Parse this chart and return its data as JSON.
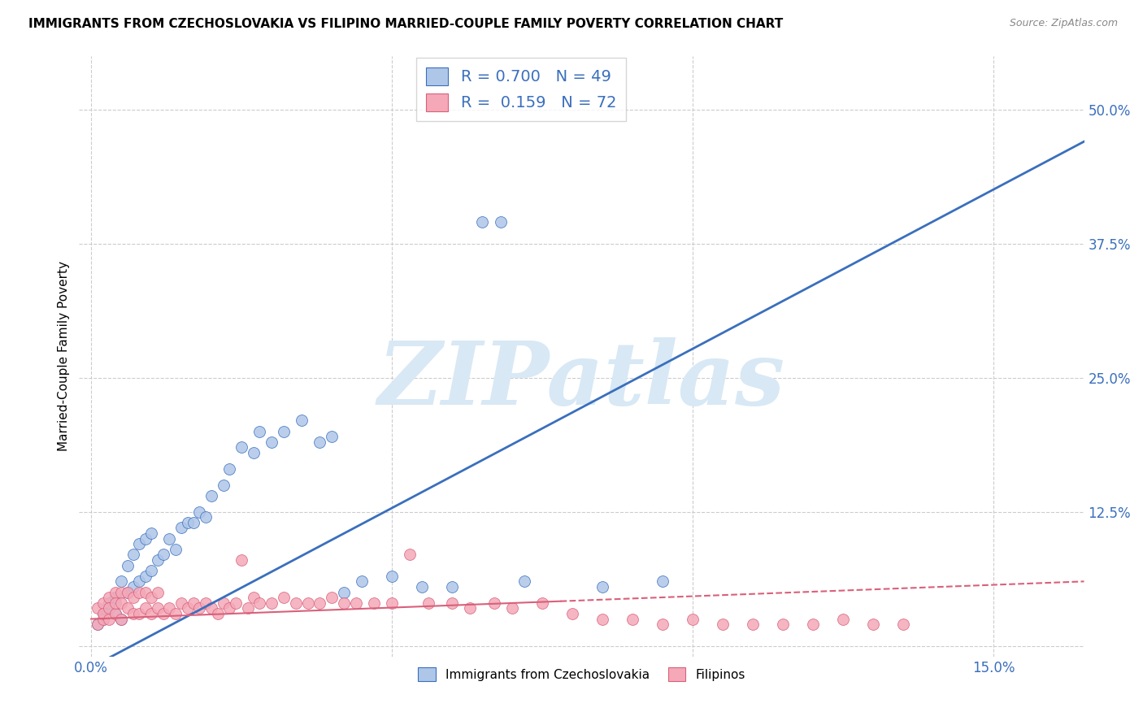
{
  "title": "IMMIGRANTS FROM CZECHOSLOVAKIA VS FILIPINO MARRIED-COUPLE FAMILY POVERTY CORRELATION CHART",
  "source": "Source: ZipAtlas.com",
  "ylabel": "Married-Couple Family Poverty",
  "x_ticks": [
    0.0,
    0.05,
    0.1,
    0.15
  ],
  "x_tick_labels": [
    "0.0%",
    "",
    "",
    "15.0%"
  ],
  "y_ticks": [
    0.0,
    0.125,
    0.25,
    0.375,
    0.5
  ],
  "y_tick_labels": [
    "",
    "12.5%",
    "25.0%",
    "37.5%",
    "50.0%"
  ],
  "xlim": [
    -0.002,
    0.165
  ],
  "ylim": [
    -0.01,
    0.55
  ],
  "legend_label1": "Immigrants from Czechoslovakia",
  "legend_label2": "Filipinos",
  "R1": 0.7,
  "N1": 49,
  "R2": 0.159,
  "N2": 72,
  "color_blue": "#aec6e8",
  "color_pink": "#f4a8b8",
  "line_color_blue": "#3a6fbd",
  "line_color_pink": "#d9607a",
  "watermark": "ZIPatlas",
  "watermark_color": "#d8e8f5",
  "background_color": "#ffffff",
  "grid_color": "#cccccc",
  "blue_line_x0": 0.0,
  "blue_line_y0": -0.02,
  "blue_line_x1": 0.165,
  "blue_line_y1": 0.47,
  "pink_line_x0": 0.0,
  "pink_line_y0": 0.025,
  "pink_line_x1": 0.165,
  "pink_line_y1": 0.06,
  "scatter_blue_x": [
    0.001,
    0.002,
    0.002,
    0.003,
    0.003,
    0.004,
    0.004,
    0.005,
    0.005,
    0.006,
    0.006,
    0.007,
    0.007,
    0.008,
    0.008,
    0.009,
    0.009,
    0.01,
    0.01,
    0.011,
    0.012,
    0.013,
    0.014,
    0.015,
    0.016,
    0.017,
    0.018,
    0.019,
    0.02,
    0.022,
    0.023,
    0.025,
    0.027,
    0.028,
    0.03,
    0.032,
    0.035,
    0.038,
    0.04,
    0.042,
    0.045,
    0.05,
    0.055,
    0.06,
    0.065,
    0.068,
    0.072,
    0.085,
    0.095
  ],
  "scatter_blue_y": [
    0.02,
    0.03,
    0.025,
    0.035,
    0.04,
    0.03,
    0.045,
    0.025,
    0.06,
    0.05,
    0.075,
    0.055,
    0.085,
    0.06,
    0.095,
    0.065,
    0.1,
    0.07,
    0.105,
    0.08,
    0.085,
    0.1,
    0.09,
    0.11,
    0.115,
    0.115,
    0.125,
    0.12,
    0.14,
    0.15,
    0.165,
    0.185,
    0.18,
    0.2,
    0.19,
    0.2,
    0.21,
    0.19,
    0.195,
    0.05,
    0.06,
    0.065,
    0.055,
    0.055,
    0.395,
    0.395,
    0.06,
    0.055,
    0.06
  ],
  "scatter_pink_x": [
    0.001,
    0.001,
    0.002,
    0.002,
    0.002,
    0.003,
    0.003,
    0.003,
    0.004,
    0.004,
    0.004,
    0.005,
    0.005,
    0.005,
    0.006,
    0.006,
    0.007,
    0.007,
    0.008,
    0.008,
    0.009,
    0.009,
    0.01,
    0.01,
    0.011,
    0.011,
    0.012,
    0.013,
    0.014,
    0.015,
    0.016,
    0.017,
    0.018,
    0.019,
    0.02,
    0.021,
    0.022,
    0.023,
    0.024,
    0.025,
    0.026,
    0.027,
    0.028,
    0.03,
    0.032,
    0.034,
    0.036,
    0.038,
    0.04,
    0.042,
    0.044,
    0.047,
    0.05,
    0.053,
    0.056,
    0.06,
    0.063,
    0.067,
    0.07,
    0.075,
    0.08,
    0.085,
    0.09,
    0.095,
    0.1,
    0.105,
    0.11,
    0.115,
    0.12,
    0.125,
    0.13,
    0.135
  ],
  "scatter_pink_y": [
    0.02,
    0.035,
    0.025,
    0.04,
    0.03,
    0.025,
    0.045,
    0.035,
    0.03,
    0.05,
    0.04,
    0.025,
    0.05,
    0.04,
    0.035,
    0.05,
    0.03,
    0.045,
    0.03,
    0.05,
    0.035,
    0.05,
    0.03,
    0.045,
    0.035,
    0.05,
    0.03,
    0.035,
    0.03,
    0.04,
    0.035,
    0.04,
    0.035,
    0.04,
    0.035,
    0.03,
    0.04,
    0.035,
    0.04,
    0.08,
    0.035,
    0.045,
    0.04,
    0.04,
    0.045,
    0.04,
    0.04,
    0.04,
    0.045,
    0.04,
    0.04,
    0.04,
    0.04,
    0.085,
    0.04,
    0.04,
    0.035,
    0.04,
    0.035,
    0.04,
    0.03,
    0.025,
    0.025,
    0.02,
    0.025,
    0.02,
    0.02,
    0.02,
    0.02,
    0.025,
    0.02,
    0.02
  ]
}
